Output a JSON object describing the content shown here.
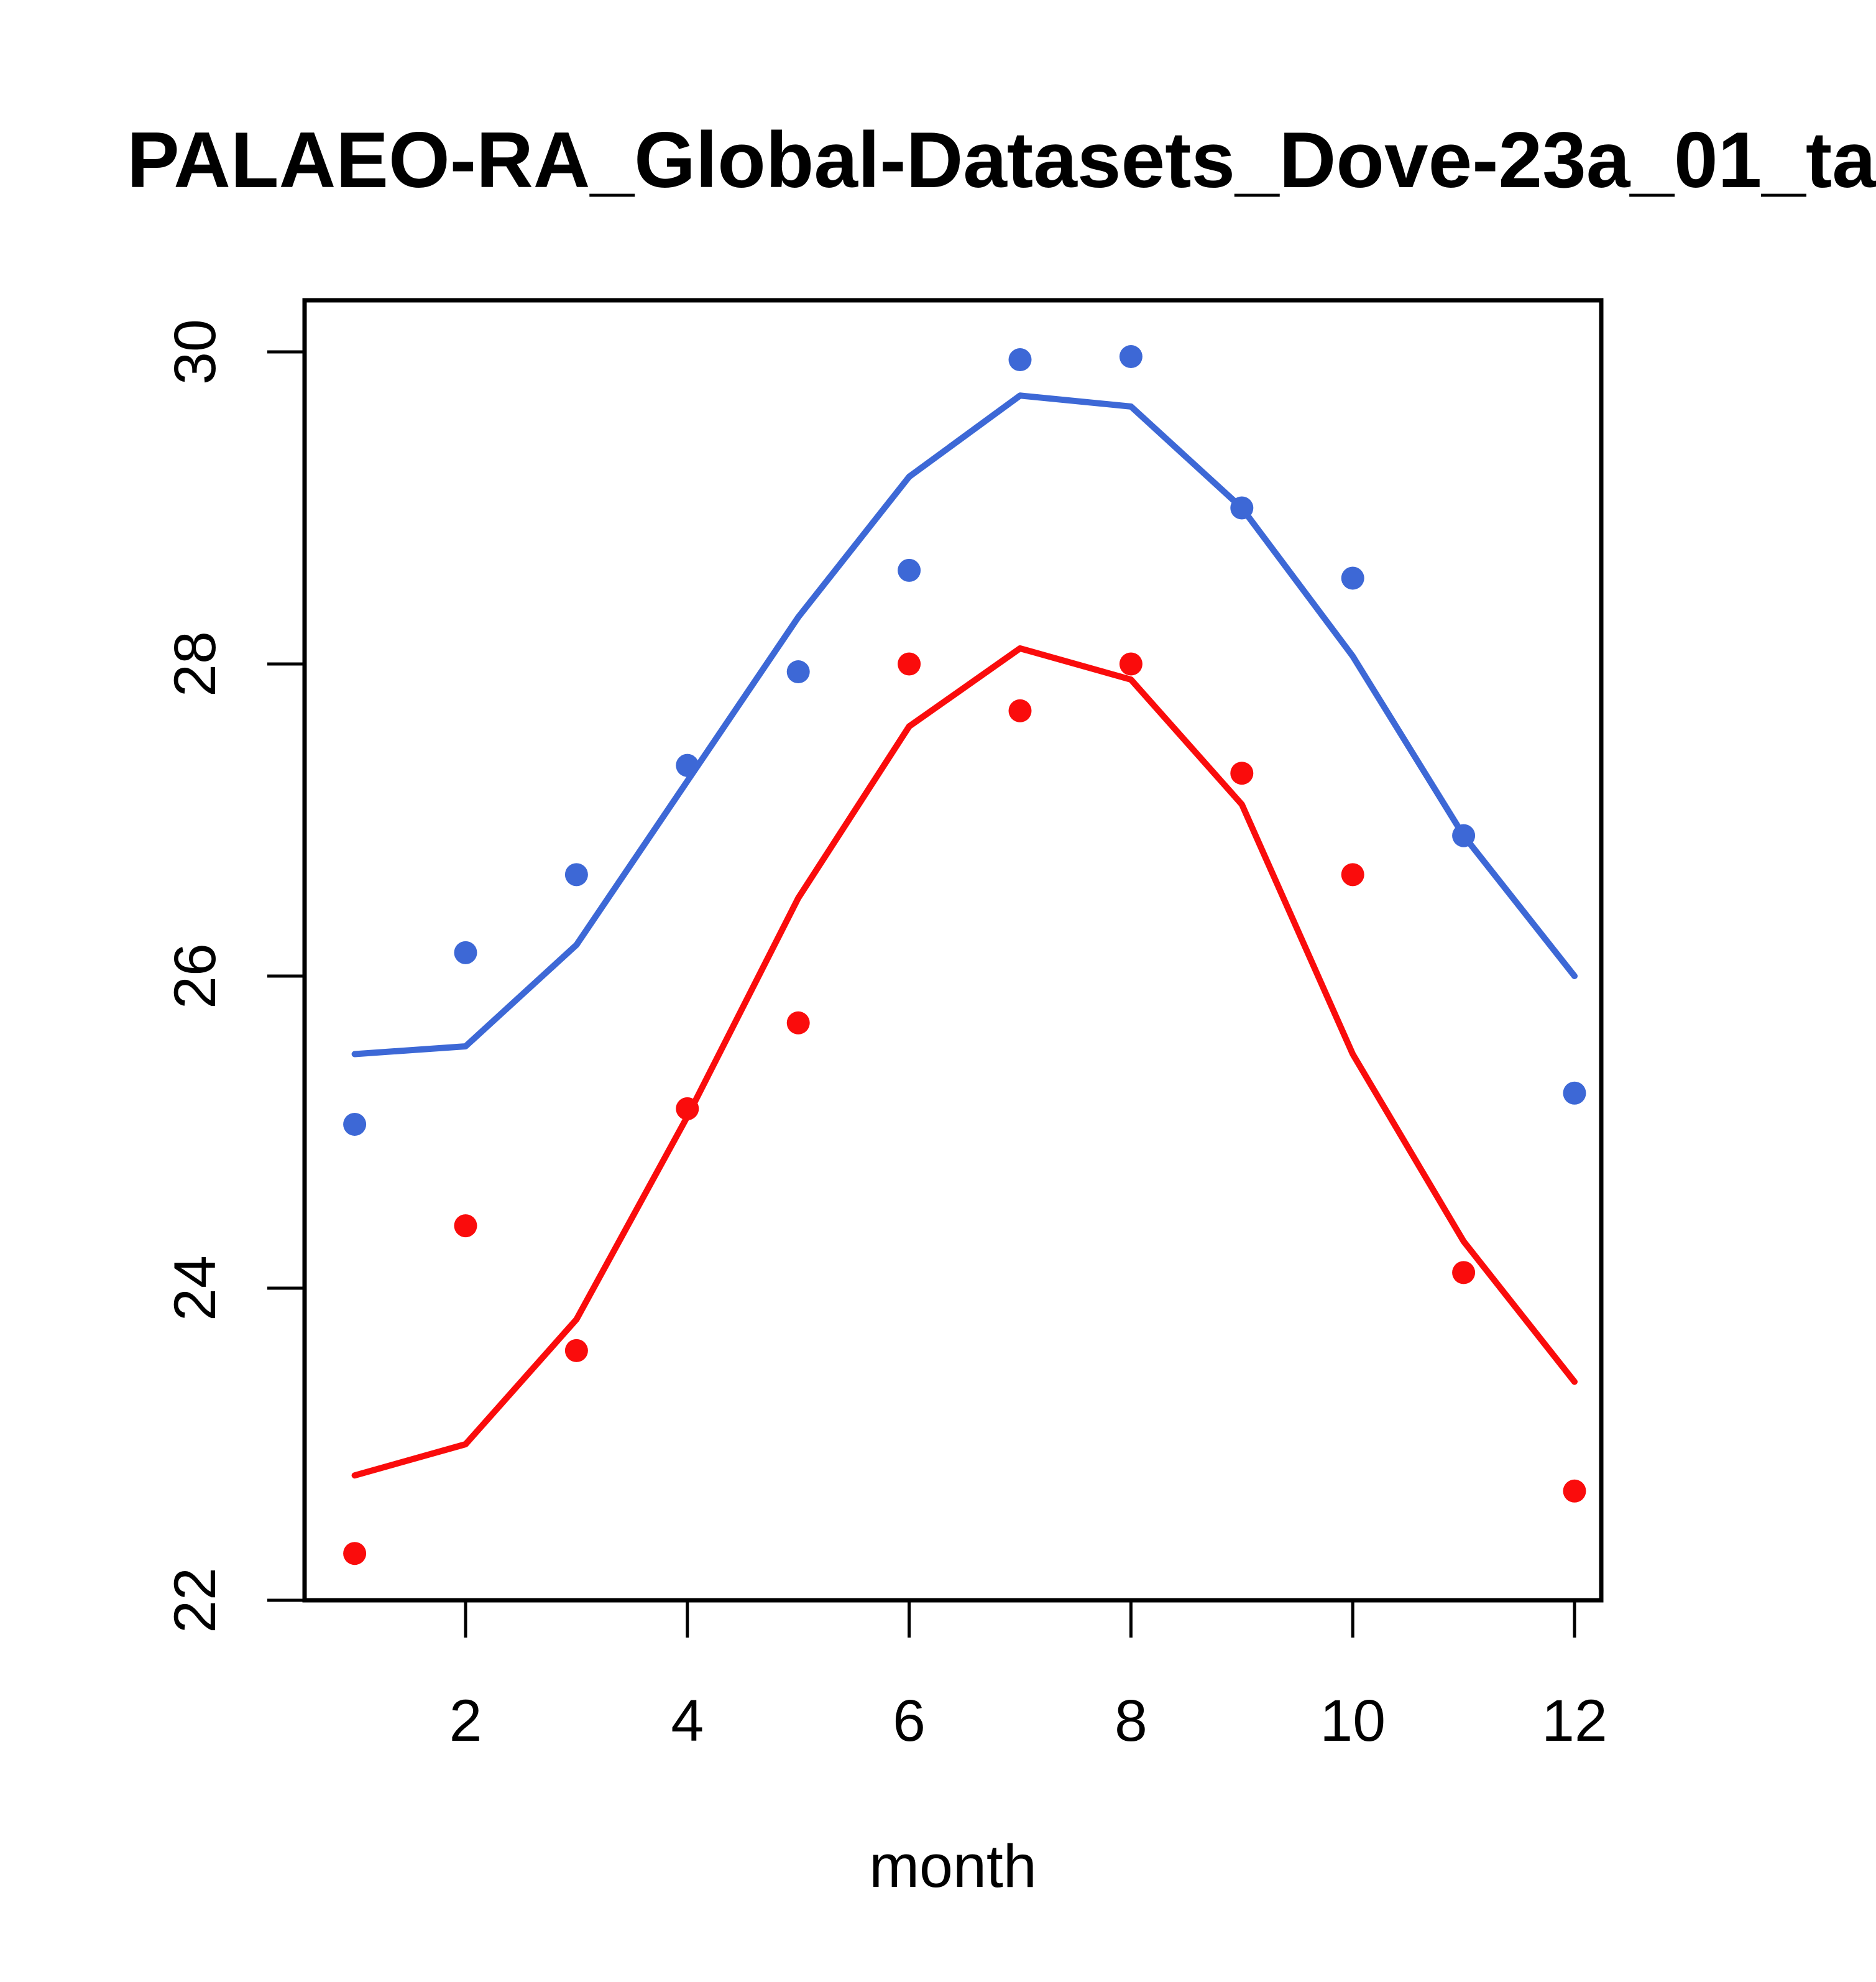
{
  "title": "PALAEO-RA_Global-Datasets_Dove-23a_01_ta",
  "colors": {
    "blue": "#3D68D6",
    "red": "#FA0C0C",
    "axis": "#000000",
    "background": "#FFFFFF"
  },
  "chart_data": {
    "type": "scatter",
    "subtype": "points-with-lines",
    "title": "PALAEO-RA_Global-Datasets_Dove-23a_01_ta",
    "xlabel": "month",
    "ylabel": "",
    "x": [
      1,
      2,
      3,
      4,
      5,
      6,
      7,
      8,
      9,
      10,
      11,
      12
    ],
    "xticks": [
      2,
      4,
      6,
      8,
      10,
      12
    ],
    "yticks": [
      22,
      24,
      26,
      28,
      30
    ],
    "xlim": [
      0.56,
      12.44
    ],
    "ylim": [
      22.0,
      30.33
    ],
    "grid": false,
    "legend": "none",
    "series": [
      {
        "name": "blue-line",
        "kind": "line",
        "color": "#3D68D6",
        "values": [
          25.5,
          25.55,
          26.2,
          27.25,
          28.3,
          29.2,
          29.72,
          29.65,
          29.0,
          28.05,
          26.9,
          26.0
        ]
      },
      {
        "name": "red-line",
        "kind": "line",
        "color": "#FA0C0C",
        "values": [
          22.8,
          23.0,
          23.8,
          25.1,
          26.5,
          27.6,
          28.1,
          27.9,
          27.1,
          25.5,
          24.3,
          23.4
        ]
      },
      {
        "name": "blue-points",
        "kind": "scatter",
        "color": "#3D68D6",
        "values": [
          25.05,
          26.15,
          26.65,
          27.35,
          27.95,
          28.6,
          29.95,
          29.97,
          29.0,
          28.55,
          26.9,
          25.25
        ]
      },
      {
        "name": "red-points",
        "kind": "scatter",
        "color": "#FA0C0C",
        "values": [
          22.3,
          24.4,
          23.6,
          25.15,
          25.7,
          28.0,
          27.7,
          28.0,
          27.3,
          26.65,
          24.1,
          22.7
        ]
      }
    ]
  }
}
